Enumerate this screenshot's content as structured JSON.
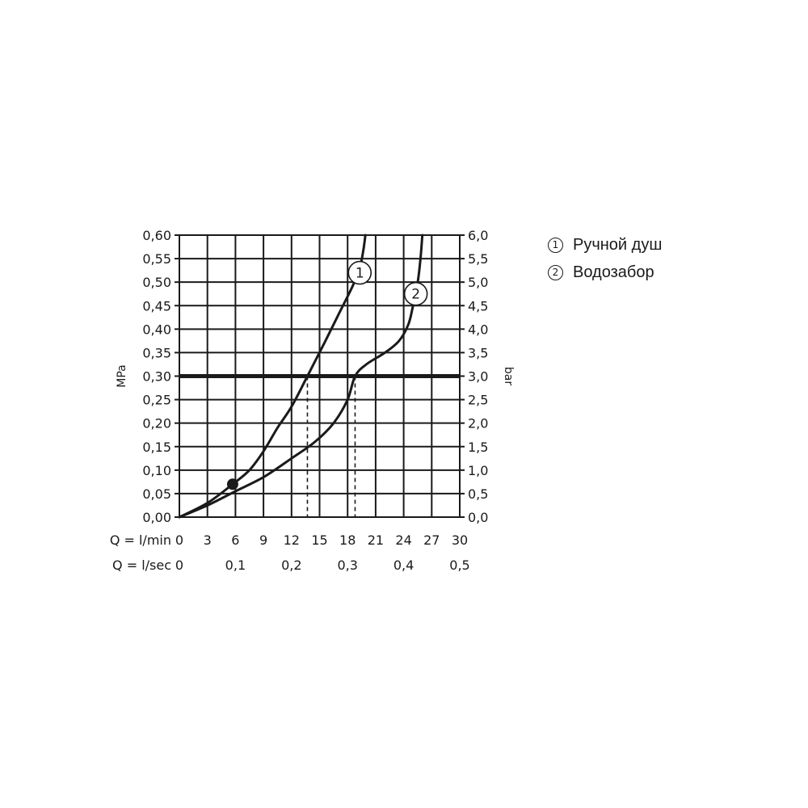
{
  "chart_data": {
    "type": "line",
    "y_left": {
      "label": "MPa",
      "ticks": [
        "0,00",
        "0,05",
        "0,10",
        "0,15",
        "0,20",
        "0,25",
        "0,30",
        "0,35",
        "0,40",
        "0,45",
        "0,50",
        "0,55",
        "0,60"
      ],
      "range": [
        0,
        0.6
      ]
    },
    "y_right": {
      "label": "bar",
      "ticks": [
        "0,0",
        "0,5",
        "1,0",
        "1,5",
        "2,0",
        "2,5",
        "3,0",
        "3,5",
        "4,0",
        "4,5",
        "5,0",
        "5,5",
        "6,0"
      ],
      "range": [
        0,
        6
      ]
    },
    "x_rows": [
      {
        "label": "Q = l/min",
        "ticks": [
          {
            "v": 0,
            "t": "0"
          },
          {
            "v": 3,
            "t": "3"
          },
          {
            "v": 6,
            "t": "6"
          },
          {
            "v": 9,
            "t": "9"
          },
          {
            "v": 12,
            "t": "12"
          },
          {
            "v": 15,
            "t": "15"
          },
          {
            "v": 18,
            "t": "18"
          },
          {
            "v": 21,
            "t": "21"
          },
          {
            "v": 24,
            "t": "24"
          },
          {
            "v": 27,
            "t": "27"
          },
          {
            "v": 30,
            "t": "30"
          }
        ]
      },
      {
        "label": "Q = l/sec",
        "ticks": [
          {
            "v": 0,
            "t": "0"
          },
          {
            "v": 6,
            "t": "0,1"
          },
          {
            "v": 12,
            "t": "0,2"
          },
          {
            "v": 18,
            "t": "0,3"
          },
          {
            "v": 24,
            "t": "0,4"
          },
          {
            "v": 30,
            "t": "0,5"
          }
        ]
      }
    ],
    "x_range": [
      0,
      30
    ],
    "grid": true,
    "reference_line": {
      "y": 0.3
    },
    "marker_point": {
      "x": 5.7,
      "y": 0.07
    },
    "series": [
      {
        "name": "Ручной душ",
        "label": "1",
        "color": "#1a1a1a",
        "points": [
          [
            0,
            0
          ],
          [
            3,
            0.03
          ],
          [
            5.7,
            0.07
          ],
          [
            7.5,
            0.1
          ],
          [
            9,
            0.14
          ],
          [
            10.5,
            0.19
          ],
          [
            12,
            0.235
          ],
          [
            13.7,
            0.3
          ],
          [
            15.5,
            0.37
          ],
          [
            17,
            0.43
          ],
          [
            18.5,
            0.49
          ],
          [
            19.3,
            0.53
          ],
          [
            19.7,
            0.57
          ],
          [
            19.9,
            0.6
          ]
        ],
        "drop_x": 13.7,
        "label_pos": [
          19.3,
          0.52
        ]
      },
      {
        "name": "Водозабор",
        "label": "2",
        "color": "#1a1a1a",
        "points": [
          [
            0,
            0
          ],
          [
            3,
            0.025
          ],
          [
            6,
            0.055
          ],
          [
            9,
            0.085
          ],
          [
            12,
            0.125
          ],
          [
            14.5,
            0.16
          ],
          [
            16.5,
            0.2
          ],
          [
            18,
            0.25
          ],
          [
            18.8,
            0.3
          ],
          [
            20,
            0.325
          ],
          [
            22,
            0.35
          ],
          [
            23.5,
            0.375
          ],
          [
            24.5,
            0.41
          ],
          [
            25,
            0.45
          ],
          [
            25.5,
            0.5
          ],
          [
            25.8,
            0.55
          ],
          [
            26,
            0.6
          ]
        ],
        "drop_x": 18.8,
        "label_pos": [
          25.3,
          0.475
        ]
      }
    ]
  },
  "legend": {
    "items": [
      {
        "marker": "1",
        "text": "Ручной душ"
      },
      {
        "marker": "2",
        "text": "Водозабор"
      }
    ]
  }
}
